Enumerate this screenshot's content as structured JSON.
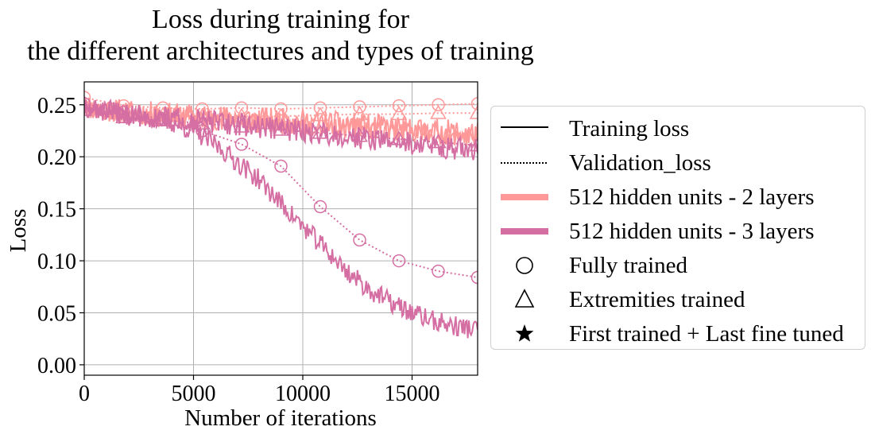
{
  "chart_data": {
    "type": "line",
    "title_line1": "Loss during training for",
    "title_line2": "the different architectures and types of training",
    "xlabel": "Number of iterations",
    "ylabel": "Loss",
    "xlim": [
      0,
      18000
    ],
    "ylim": [
      -0.01,
      0.272
    ],
    "xticks": [
      0,
      5000,
      10000,
      15000
    ],
    "xtick_labels": [
      "0",
      "5000",
      "10000",
      "15000"
    ],
    "yticks": [
      0.0,
      0.05,
      0.1,
      0.15,
      0.2,
      0.25
    ],
    "ytick_labels": [
      "0.00",
      "0.05",
      "0.10",
      "0.15",
      "0.20",
      "0.25"
    ],
    "grid": true,
    "legend_position": "outside-right",
    "colors": {
      "two_layers": "#ff9999",
      "three_layers": "#d56fa3"
    },
    "series": [
      {
        "id": "s2_full_train",
        "architecture": "512 hidden units - 2 layers",
        "training": "Fully trained",
        "kind": "Training loss",
        "color": "#ff9999",
        "x": [
          0,
          2000,
          4000,
          6000,
          8000,
          10000,
          12000,
          14000,
          16000,
          18000
        ],
        "y": [
          0.248,
          0.243,
          0.24,
          0.238,
          0.236,
          0.234,
          0.231,
          0.228,
          0.225,
          0.222
        ],
        "noise": 0.012,
        "seed": 11
      },
      {
        "id": "s2_full_val",
        "architecture": "512 hidden units - 2 layers",
        "training": "Fully trained",
        "kind": "Validation_loss",
        "color": "#ff9999",
        "marker": "circle",
        "x": [
          0,
          1800,
          3600,
          5400,
          7200,
          9000,
          10800,
          12600,
          14400,
          16200,
          18000
        ],
        "y": [
          0.257,
          0.249,
          0.247,
          0.246,
          0.247,
          0.246,
          0.247,
          0.248,
          0.249,
          0.25,
          0.251
        ]
      },
      {
        "id": "s2_ext_train",
        "architecture": "512 hidden units - 2 layers",
        "training": "Extremities trained",
        "kind": "Training loss",
        "color": "#ff9999",
        "x": [
          0,
          2000,
          4000,
          6000,
          8000,
          10000,
          12000,
          14000,
          16000,
          18000
        ],
        "y": [
          0.247,
          0.242,
          0.238,
          0.235,
          0.233,
          0.23,
          0.228,
          0.225,
          0.222,
          0.219
        ],
        "noise": 0.01,
        "seed": 23
      },
      {
        "id": "s2_ext_val",
        "architecture": "512 hidden units - 2 layers",
        "training": "Extremities trained",
        "kind": "Validation_loss",
        "color": "#ff9999",
        "marker": "triangle",
        "x": [
          0,
          1800,
          3600,
          5400,
          7200,
          9000,
          10800,
          12600,
          14400,
          16200,
          18000
        ],
        "y": [
          0.251,
          0.243,
          0.24,
          0.239,
          0.239,
          0.239,
          0.24,
          0.241,
          0.241,
          0.242,
          0.242
        ]
      },
      {
        "id": "s3_full_train",
        "architecture": "512 hidden units - 3 layers",
        "training": "Fully trained",
        "kind": "Training loss",
        "color": "#d56fa3",
        "x": [
          0,
          2000,
          4000,
          5000,
          6000,
          7000,
          8000,
          9000,
          10000,
          11000,
          12000,
          13000,
          14000,
          15000,
          16000,
          17000,
          18000
        ],
        "y": [
          0.248,
          0.24,
          0.233,
          0.225,
          0.212,
          0.195,
          0.178,
          0.155,
          0.133,
          0.112,
          0.09,
          0.073,
          0.06,
          0.05,
          0.042,
          0.037,
          0.034
        ],
        "noise": 0.01,
        "seed": 37
      },
      {
        "id": "s3_full_val",
        "architecture": "512 hidden units - 3 layers",
        "training": "Fully trained",
        "kind": "Validation_loss",
        "color": "#d56fa3",
        "marker": "circle",
        "x": [
          0,
          1800,
          3600,
          5400,
          7200,
          9000,
          10800,
          12600,
          14400,
          16200,
          18000
        ],
        "y": [
          0.251,
          0.243,
          0.236,
          0.225,
          0.212,
          0.191,
          0.152,
          0.12,
          0.1,
          0.09,
          0.084
        ]
      },
      {
        "id": "s3_ext_train",
        "architecture": "512 hidden units - 3 layers",
        "training": "Extremities trained",
        "kind": "Training loss",
        "color": "#d56fa3",
        "x": [
          0,
          2000,
          4000,
          6000,
          8000,
          10000,
          12000,
          14000,
          16000,
          18000
        ],
        "y": [
          0.246,
          0.241,
          0.237,
          0.233,
          0.229,
          0.225,
          0.22,
          0.215,
          0.21,
          0.206
        ],
        "noise": 0.011,
        "seed": 51
      },
      {
        "id": "s3_ext_val",
        "architecture": "512 hidden units - 3 layers",
        "training": "Extremities trained",
        "kind": "Validation_loss",
        "color": "#d56fa3",
        "marker": "triangle",
        "x": [
          0,
          1800,
          3600,
          5400,
          7200,
          9000,
          10800,
          12600,
          14400,
          16200,
          18000
        ],
        "y": [
          0.245,
          0.238,
          0.235,
          0.232,
          0.229,
          0.226,
          0.223,
          0.22,
          0.217,
          0.214,
          0.211
        ]
      }
    ],
    "legend": [
      {
        "label": "Training loss",
        "symbol": "solid-line"
      },
      {
        "label": "Validation_loss",
        "symbol": "dotted-line"
      },
      {
        "label": "512 hidden units - 2 layers",
        "symbol": "thick-line",
        "color": "#ff9999"
      },
      {
        "label": "512 hidden units - 3 layers",
        "symbol": "thick-line",
        "color": "#d56fa3"
      },
      {
        "label": "Fully trained",
        "symbol": "circle"
      },
      {
        "label": "Extremities trained",
        "symbol": "triangle"
      },
      {
        "label": "First trained + Last fine tuned",
        "symbol": "star"
      }
    ]
  }
}
